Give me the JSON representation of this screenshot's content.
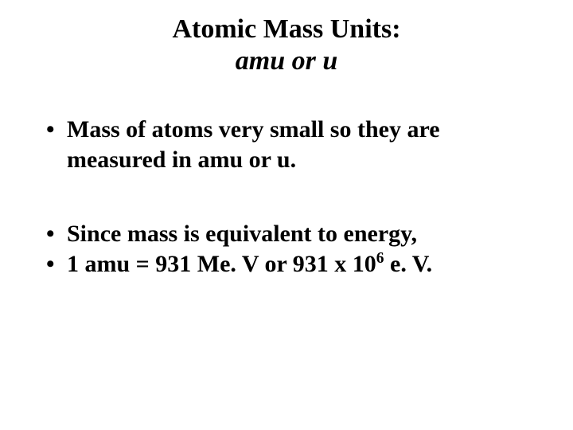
{
  "title": {
    "line1": "Atomic Mass Units:",
    "line2": "amu or u"
  },
  "bullets": {
    "b1": "Mass of atoms very small so they are measured in amu or u.",
    "b2": "Since mass is equivalent to energy,",
    "b3_prefix": "1 amu = 931 Me. V or 931 x 10",
    "b3_sup": "6",
    "b3_suffix": " e. V."
  },
  "styling": {
    "background_color": "#ffffff",
    "text_color": "#000000",
    "title_fontsize_pt": 26,
    "body_fontsize_pt": 22,
    "font_family": "Times New Roman",
    "font_weight": "bold",
    "title_line2_italic": true
  }
}
